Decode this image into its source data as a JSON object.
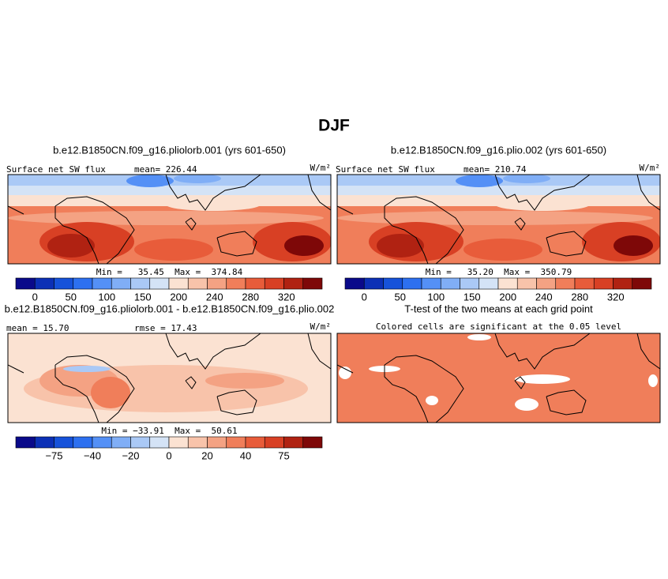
{
  "title": "DJF",
  "colorbar_colors": [
    "#0a0a8a",
    "#0c30b6",
    "#1652da",
    "#2d70f0",
    "#5490f6",
    "#80aef6",
    "#aac9f6",
    "#d4e3f6",
    "#fbe2d2",
    "#f8c3aa",
    "#f4a283",
    "#f07e5a",
    "#e85c3a",
    "#d84024",
    "#b02212",
    "#7e0808"
  ],
  "panels": [
    {
      "title": "b.e12.B1850CN.f09_g16.pliolorb.001 (yrs 601-650)",
      "variable": "Surface net SW flux",
      "mean": "mean= 226.44",
      "units": "W/m²",
      "minmax": "Min =   35.45  Max =  374.84",
      "colorbar_labels": [
        "0",
        "50",
        "100",
        "150",
        "200",
        "240",
        "280",
        "320"
      ]
    },
    {
      "title": "b.e12.B1850CN.f09_g16.plio.002 (yrs 601-650)",
      "variable": "Surface net SW flux",
      "mean": "mean= 210.74",
      "units": "W/m²",
      "minmax": "Min =   35.20  Max =  350.79",
      "colorbar_labels": [
        "0",
        "50",
        "100",
        "150",
        "200",
        "240",
        "280",
        "320"
      ]
    },
    {
      "title": "b.e12.B1850CN.f09_g16.pliolorb.001 - b.e12.B1850CN.f09_g16.plio.002",
      "mean": "mean =  15.70",
      "rmse": "rmse =  17.43",
      "units": "W/m²",
      "minmax": "Min = −33.91  Max =  50.61",
      "colorbar_labels": [
        "−75",
        "−40",
        "−20",
        "0",
        "20",
        "40",
        "75"
      ]
    },
    {
      "title": "T-test of the two means at each grid point",
      "subtitle": "Colored cells are significant at the 0.05 level"
    }
  ]
}
